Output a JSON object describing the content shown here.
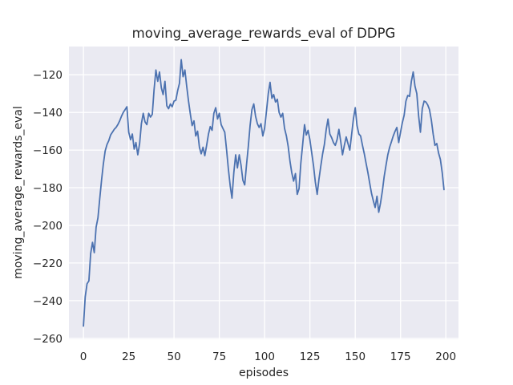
{
  "chart_data": {
    "type": "line",
    "title": "moving_average_rewards_eval of DDPG",
    "xlabel": "episodes",
    "ylabel": "moving_average_rewards_eval",
    "xlim": [
      -8,
      207
    ],
    "ylim": [
      -260.5,
      -105
    ],
    "x_ticks": [
      0,
      25,
      50,
      75,
      100,
      125,
      150,
      175,
      200
    ],
    "x_tick_labels": [
      "0",
      "25",
      "50",
      "75",
      "100",
      "125",
      "150",
      "175",
      "200"
    ],
    "y_ticks": [
      -120,
      -140,
      -160,
      -180,
      -200,
      -220,
      -240,
      -260
    ],
    "y_tick_labels": [
      "−120",
      "−140",
      "−160",
      "−180",
      "−200",
      "−220",
      "−240",
      "−260"
    ],
    "grid": true,
    "legend": false,
    "style": {
      "line_color": "#4c72b0",
      "axes_bg": "#eaeaf2",
      "grid_color": "#ffffff",
      "text_color": "#262626",
      "figure_bg": "#ffffff",
      "line_width": 1.8,
      "grid_width": 1.3
    },
    "series": [
      {
        "name": "moving_average_rewards_eval",
        "x_start": 0,
        "x_step": 1,
        "y": [
          -253.5,
          -238,
          -231,
          -229.5,
          -215,
          -209,
          -214.5,
          -201,
          -196,
          -186,
          -176,
          -167.5,
          -160.5,
          -157,
          -155,
          -152,
          -150.5,
          -149,
          -148,
          -146.5,
          -144.5,
          -142,
          -140,
          -138.5,
          -137,
          -150.5,
          -154.5,
          -151.5,
          -159.5,
          -156,
          -162.5,
          -156.5,
          -146,
          -140.5,
          -145,
          -146.5,
          -140.5,
          -142.5,
          -141,
          -128,
          -117.5,
          -123.5,
          -118.5,
          -127,
          -130.5,
          -123.5,
          -136.5,
          -138,
          -135.5,
          -137,
          -134,
          -133.5,
          -128.5,
          -124.5,
          -112,
          -121,
          -117.5,
          -126,
          -134,
          -141,
          -147,
          -144.5,
          -152.5,
          -150,
          -158.5,
          -162,
          -158.5,
          -163,
          -157.5,
          -151.5,
          -147.5,
          -149.5,
          -140.5,
          -137.5,
          -143.5,
          -140.5,
          -146.5,
          -148.5,
          -150.5,
          -160,
          -170,
          -179,
          -185.5,
          -172,
          -162.5,
          -169.5,
          -162.5,
          -168,
          -176,
          -178.5,
          -168,
          -158,
          -147,
          -138.5,
          -135.5,
          -142,
          -146,
          -148,
          -146,
          -152.5,
          -148.5,
          -139.5,
          -130,
          -124,
          -132.5,
          -130.5,
          -134.5,
          -133,
          -140,
          -142.5,
          -140.5,
          -148.5,
          -152.5,
          -158,
          -166,
          -172,
          -176.5,
          -172.5,
          -183.5,
          -180.5,
          -167,
          -157,
          -146.5,
          -152,
          -149.5,
          -154.5,
          -161.5,
          -168.5,
          -177,
          -183.5,
          -175.5,
          -168.5,
          -162,
          -157,
          -149,
          -143.5,
          -151.5,
          -153.5,
          -156,
          -157.5,
          -154.5,
          -149,
          -155.5,
          -162.5,
          -157.5,
          -153,
          -156.5,
          -160,
          -152,
          -143.5,
          -137.5,
          -147,
          -151.5,
          -152.5,
          -157.5,
          -162,
          -167,
          -172,
          -177.5,
          -183,
          -187,
          -190.5,
          -184.5,
          -193,
          -188,
          -181.5,
          -174,
          -168,
          -162.5,
          -158.5,
          -155.5,
          -152.5,
          -150,
          -148,
          -156,
          -150.5,
          -145.5,
          -141.5,
          -134,
          -131,
          -131.5,
          -123.5,
          -118.5,
          -126,
          -130,
          -142,
          -150.5,
          -138,
          -134,
          -134.5,
          -136,
          -138.5,
          -144,
          -151.5,
          -157.5,
          -156.5,
          -161.5,
          -165,
          -172,
          -181
        ]
      }
    ]
  }
}
